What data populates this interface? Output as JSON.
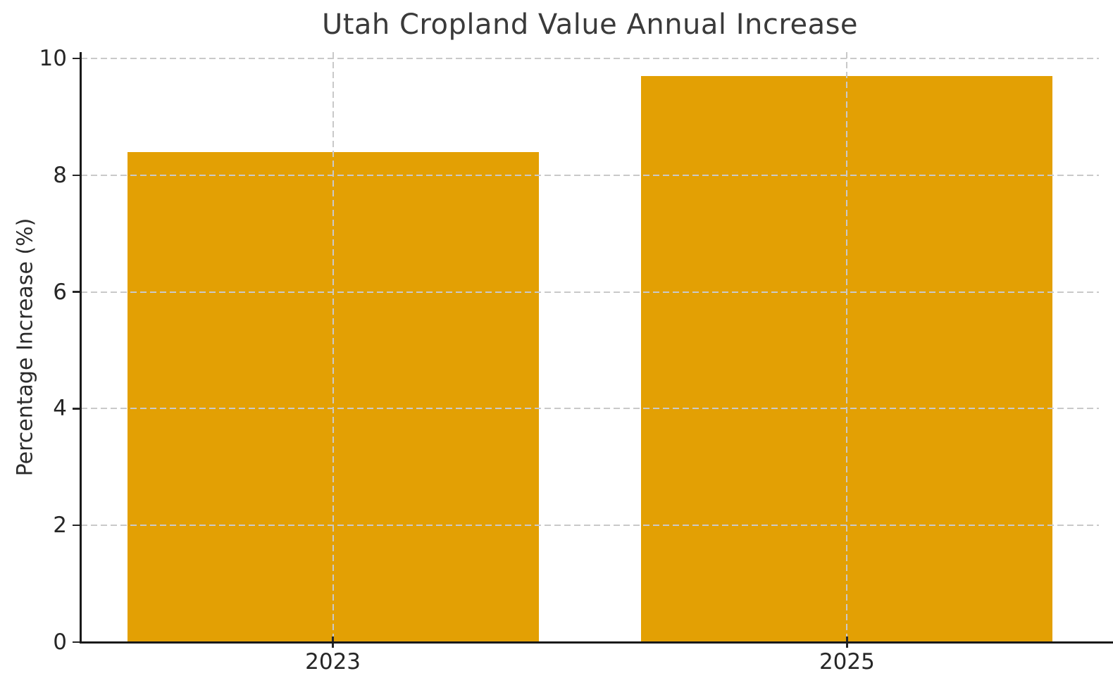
{
  "chart_data": {
    "type": "bar",
    "title": "Utah Cropland Value Annual Increase",
    "xlabel": "",
    "ylabel": "Percentage Increase (%)",
    "categories": [
      "2023",
      "2025"
    ],
    "values": [
      8.4,
      9.7
    ],
    "yticks": [
      0,
      2,
      4,
      6,
      8,
      10
    ],
    "ylim": [
      0,
      10.11
    ],
    "legend": "none",
    "grid": "dashed, horizontal at each y-tick and vertical at each category, drawn over bars",
    "colors": {
      "bar": "#E3A004",
      "gridline": "#C9C9C9",
      "axis_spine": "#1A1A1A",
      "tick_label": "#262626",
      "title_text": "#3A3A3A"
    }
  }
}
